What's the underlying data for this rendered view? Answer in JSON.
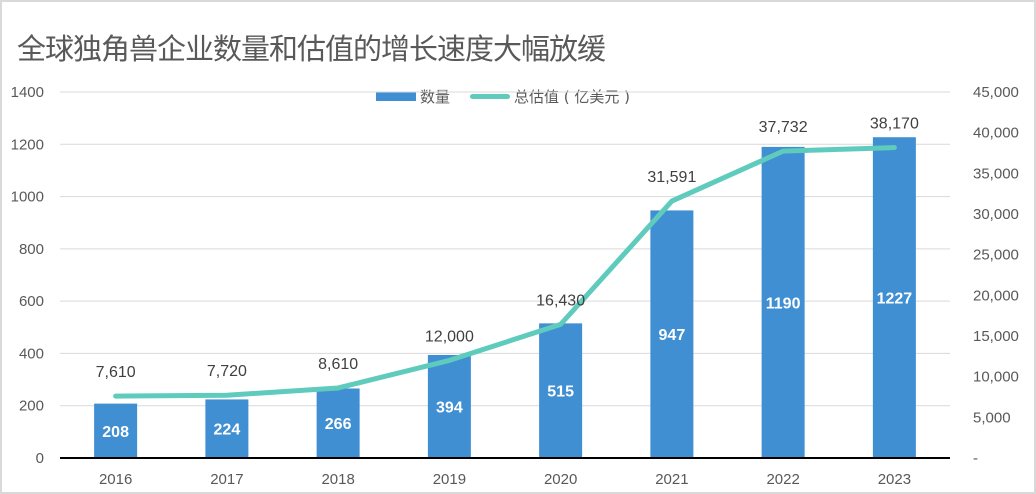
{
  "chart_data": {
    "type": "bar+line",
    "title": "全球独角兽企业数量和估值的增长速度大幅放缓",
    "categories": [
      "2016",
      "2017",
      "2018",
      "2019",
      "2020",
      "2021",
      "2022",
      "2023"
    ],
    "series": [
      {
        "name": "数量",
        "type": "bar",
        "axis": "left",
        "color": "#3f8fd2",
        "values": [
          208,
          224,
          266,
          394,
          515,
          947,
          1190,
          1227
        ],
        "labels": [
          "208",
          "224",
          "266",
          "394",
          "515",
          "947",
          "1190",
          "1227"
        ]
      },
      {
        "name": "总估值（亿美元）",
        "type": "line",
        "axis": "right",
        "color": "#5ecbbd",
        "values": [
          7610,
          7720,
          8610,
          12000,
          16430,
          31591,
          37732,
          38170
        ],
        "labels": [
          "7,610",
          "7,720",
          "8,610",
          "12,000",
          "16,430",
          "31,591",
          "37,732",
          "38,170"
        ]
      }
    ],
    "y_left": {
      "range": [
        0,
        1400
      ],
      "ticks": [
        0,
        200,
        400,
        600,
        800,
        1000,
        1200,
        1400
      ],
      "tick_labels": [
        "0",
        "200",
        "400",
        "600",
        "800",
        "1000",
        "1200",
        "1400"
      ]
    },
    "y_right": {
      "range": [
        0,
        45000
      ],
      "ticks": [
        0,
        5000,
        10000,
        15000,
        20000,
        25000,
        30000,
        35000,
        40000,
        45000
      ],
      "tick_labels": [
        "-",
        "5,000",
        "10,000",
        "15,000",
        "20,000",
        "25,000",
        "30,000",
        "35,000",
        "40,000",
        "45,000"
      ]
    },
    "xlabel": "",
    "ylabel": "",
    "grid": true,
    "legend_position": "top-center",
    "legend": [
      "数量",
      "总估值 ( 亿美元 )"
    ]
  }
}
